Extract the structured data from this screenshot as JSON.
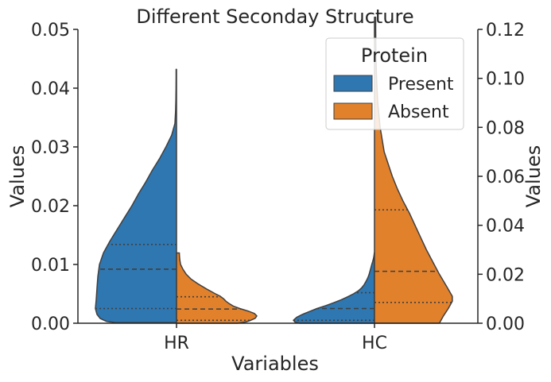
{
  "chart_data": {
    "type": "violin",
    "title": "Different Seconday Structure",
    "xlabel": "Variables",
    "ylabel": "Values",
    "ylabel_right": "Values",
    "categories": [
      "HR",
      "HC"
    ],
    "ylim": [
      0,
      0.05
    ],
    "yticks": [
      "0.00",
      "0.01",
      "0.02",
      "0.03",
      "0.04",
      "0.05"
    ],
    "ylim_right": [
      0,
      0.12
    ],
    "yticks_right": [
      "0.00",
      "0.02",
      "0.04",
      "0.06",
      "0.08",
      "0.10",
      "0.12"
    ],
    "legend": {
      "title": "Protein",
      "placement": "top-right"
    },
    "split": true,
    "series": [
      {
        "name": "Present",
        "color": "#2f77b1",
        "axis": "left",
        "violins": [
          {
            "category": "HR",
            "quartiles": [
              0.0025,
              0.0092,
              0.0134
            ],
            "profile": [
              [
                0.0001,
                0.75
              ],
              [
                0.0003,
                0.86
              ],
              [
                0.0008,
                0.94
              ],
              [
                0.0015,
                0.98
              ],
              [
                0.0025,
                1.0
              ],
              [
                0.004,
                0.99
              ],
              [
                0.006,
                0.98
              ],
              [
                0.008,
                0.97
              ],
              [
                0.01,
                0.95
              ],
              [
                0.012,
                0.9
              ],
              [
                0.014,
                0.82
              ],
              [
                0.016,
                0.73
              ],
              [
                0.018,
                0.64
              ],
              [
                0.02,
                0.55
              ],
              [
                0.022,
                0.47
              ],
              [
                0.024,
                0.38
              ],
              [
                0.026,
                0.3
              ],
              [
                0.028,
                0.21
              ],
              [
                0.03,
                0.13
              ],
              [
                0.032,
                0.06
              ],
              [
                0.034,
                0.02
              ],
              [
                0.036,
                0.012
              ],
              [
                0.038,
                0.008
              ],
              [
                0.04,
                0.006
              ],
              [
                0.042,
                0.005
              ],
              [
                0.0432,
                0.005
              ]
            ]
          },
          {
            "category": "HC",
            "quartiles": [
              0.0005,
              0.0025,
              0.0052
            ],
            "profile": [
              [
                0.0,
                0.92
              ],
              [
                0.0002,
                0.98
              ],
              [
                0.0005,
                1.0
              ],
              [
                0.001,
                0.96
              ],
              [
                0.0015,
                0.89
              ],
              [
                0.002,
                0.8
              ],
              [
                0.0025,
                0.71
              ],
              [
                0.003,
                0.6
              ],
              [
                0.0035,
                0.5
              ],
              [
                0.004,
                0.41
              ],
              [
                0.0045,
                0.33
              ],
              [
                0.005,
                0.26
              ],
              [
                0.0055,
                0.2
              ],
              [
                0.006,
                0.16
              ],
              [
                0.0065,
                0.13
              ],
              [
                0.007,
                0.11
              ],
              [
                0.0075,
                0.09
              ],
              [
                0.008,
                0.075
              ],
              [
                0.0085,
                0.063
              ],
              [
                0.009,
                0.053
              ],
              [
                0.0095,
                0.043
              ],
              [
                0.01,
                0.033
              ],
              [
                0.0105,
                0.023
              ],
              [
                0.011,
                0.013
              ],
              [
                0.0115,
                0.006
              ],
              [
                0.012,
                0.002
              ]
            ]
          }
        ]
      },
      {
        "name": "Absent",
        "color": "#e1812c",
        "axis": "right",
        "violins": [
          {
            "category": "HR",
            "quartiles": [
              0.0012,
              0.0058,
              0.0108
            ],
            "profile": [
              [
                0.0,
                0.75
              ],
              [
                0.0005,
                0.85
              ],
              [
                0.001,
                0.9
              ],
              [
                0.002,
                0.97
              ],
              [
                0.003,
                0.99
              ],
              [
                0.004,
                0.96
              ],
              [
                0.005,
                0.88
              ],
              [
                0.006,
                0.78
              ],
              [
                0.007,
                0.7
              ],
              [
                0.008,
                0.65
              ],
              [
                0.009,
                0.61
              ],
              [
                0.01,
                0.58
              ],
              [
                0.011,
                0.54
              ],
              [
                0.012,
                0.48
              ],
              [
                0.014,
                0.37
              ],
              [
                0.016,
                0.27
              ],
              [
                0.018,
                0.18
              ],
              [
                0.02,
                0.12
              ],
              [
                0.022,
                0.08
              ],
              [
                0.024,
                0.05
              ],
              [
                0.026,
                0.04
              ],
              [
                0.028,
                0.035
              ],
              [
                0.0287,
                0.035
              ]
            ]
          },
          {
            "category": "HC",
            "quartiles": [
              0.0085,
              0.0212,
              0.0463
            ],
            "profile": [
              [
                0.0,
                0.8
              ],
              [
                0.003,
                0.85
              ],
              [
                0.006,
                0.91
              ],
              [
                0.009,
                0.96
              ],
              [
                0.011,
                0.96
              ],
              [
                0.015,
                0.89
              ],
              [
                0.02,
                0.8
              ],
              [
                0.025,
                0.72
              ],
              [
                0.03,
                0.64
              ],
              [
                0.035,
                0.57
              ],
              [
                0.04,
                0.5
              ],
              [
                0.045,
                0.43
              ],
              [
                0.05,
                0.35
              ],
              [
                0.055,
                0.28
              ],
              [
                0.06,
                0.22
              ],
              [
                0.065,
                0.17
              ],
              [
                0.07,
                0.12
              ],
              [
                0.08,
                0.07
              ],
              [
                0.09,
                0.04
              ],
              [
                0.1,
                0.025
              ],
              [
                0.11,
                0.018
              ],
              [
                0.12,
                0.015
              ],
              [
                0.125,
                0.015
              ]
            ]
          }
        ]
      }
    ]
  }
}
